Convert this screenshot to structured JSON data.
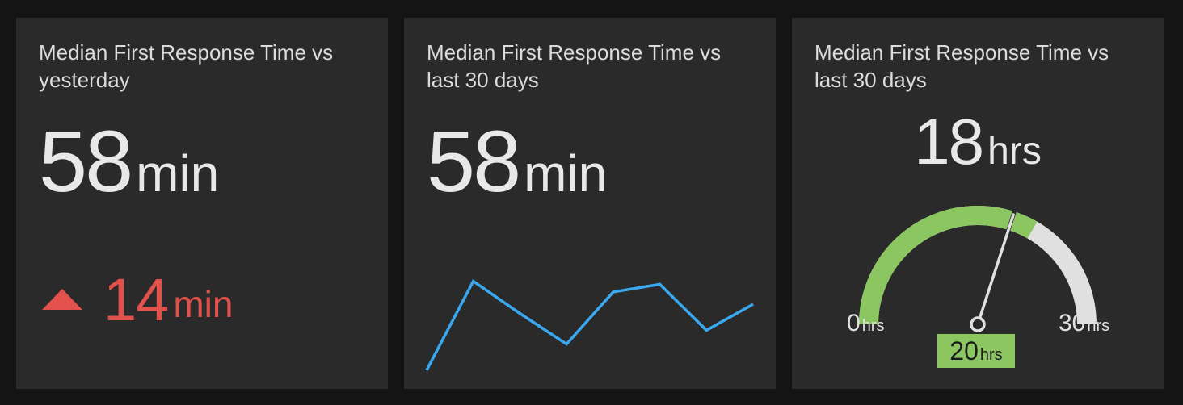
{
  "panels": [
    {
      "title": "Median First Response Time vs yesterday",
      "value": "58",
      "unit": "min",
      "delta": {
        "direction": "up",
        "value": "14",
        "unit": "min",
        "color": "#e2514c"
      }
    },
    {
      "title": "Median First Response Time vs last 30 days",
      "value": "58",
      "unit": "min",
      "sparkline": {
        "color": "#3aa8ef",
        "values": [
          8,
          66,
          45,
          25,
          59,
          64,
          34,
          51
        ]
      }
    },
    {
      "title": "Median First Response Time vs last 30 days",
      "value": "18",
      "unit": "hrs",
      "gauge": {
        "min": 0,
        "max": 30,
        "current": 18,
        "target": 20,
        "min_label": "0",
        "max_label": "30",
        "target_label": "20",
        "unit": "hrs",
        "fill_color": "#8cc661",
        "track_color": "#e0e0e0"
      }
    }
  ]
}
